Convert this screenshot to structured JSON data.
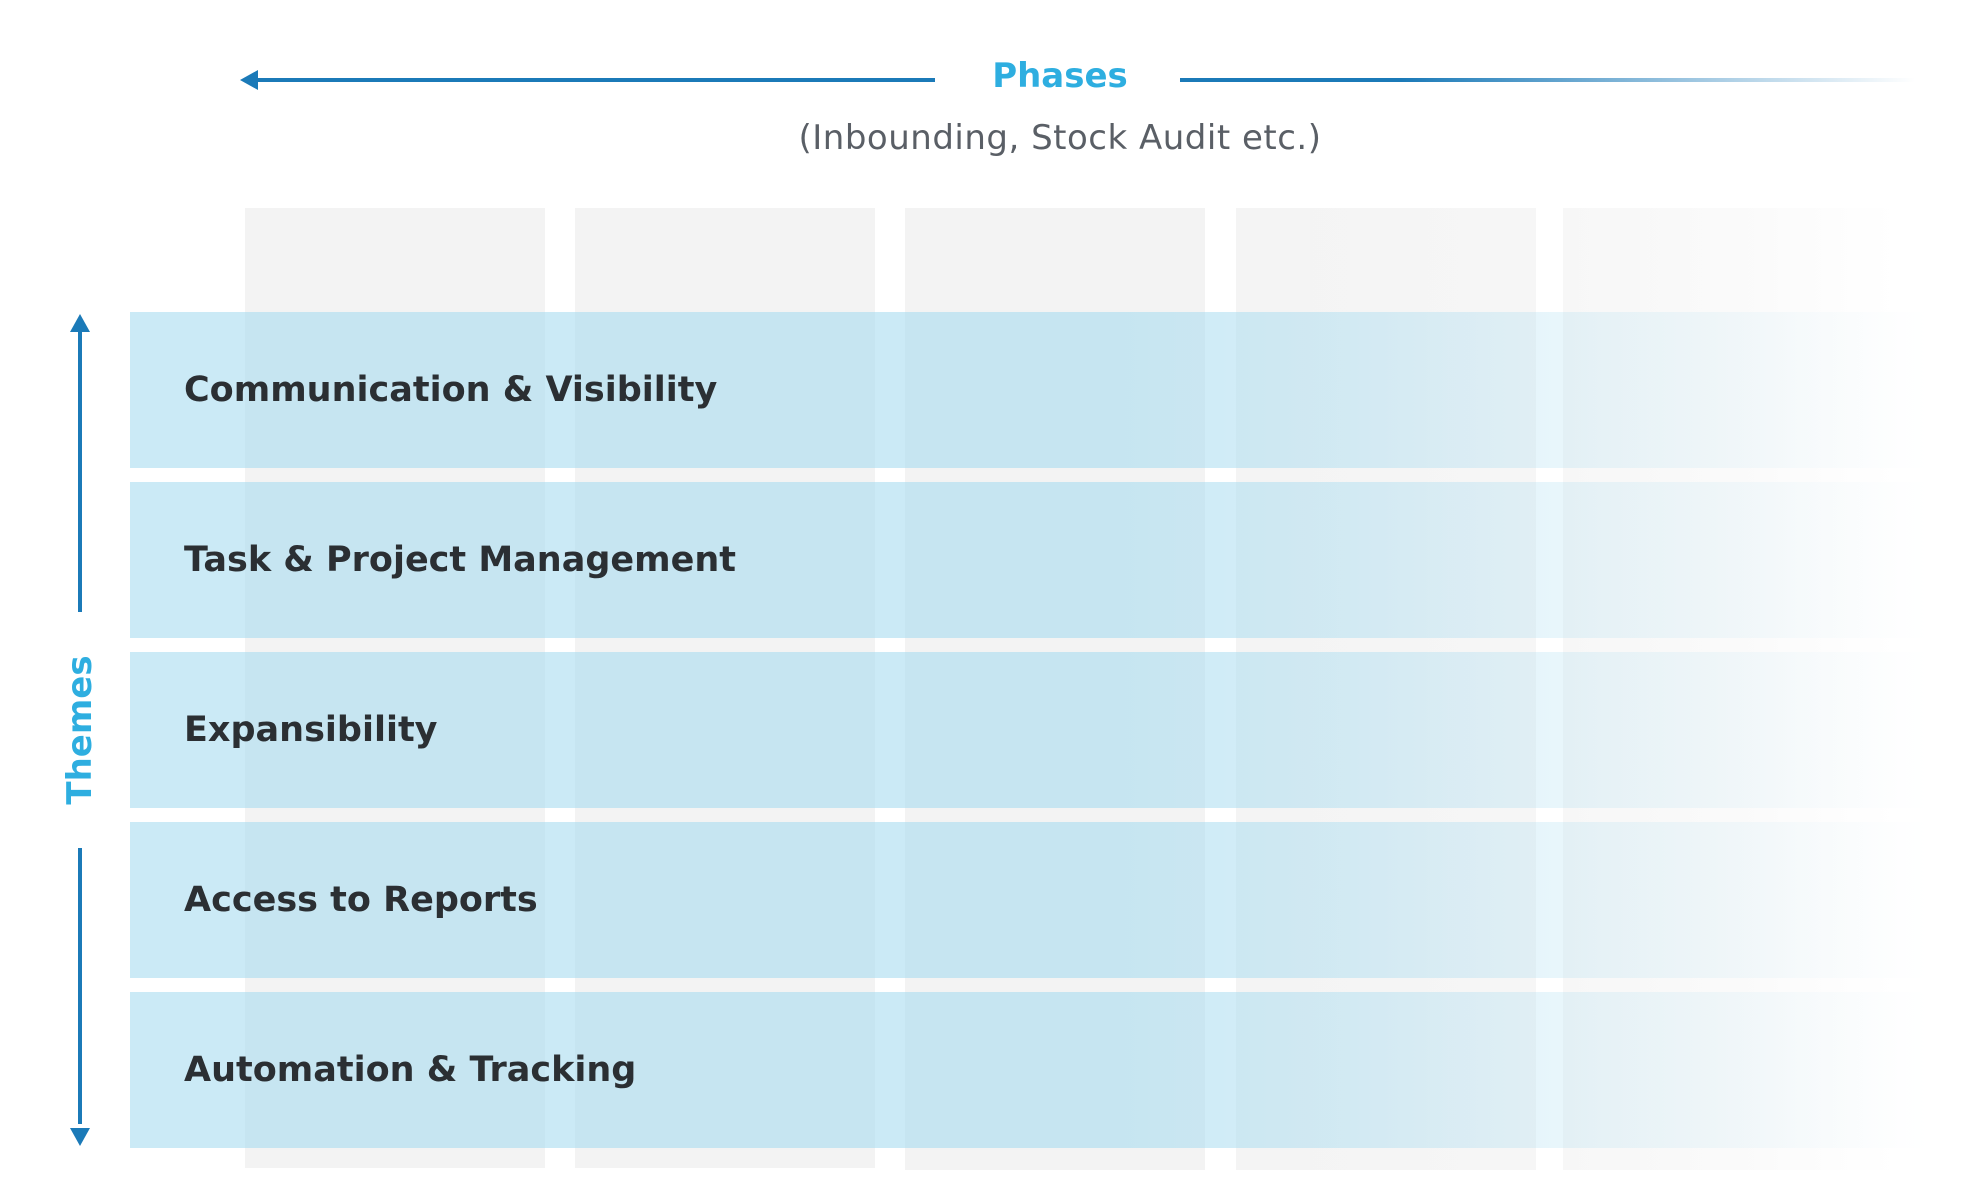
{
  "phases": {
    "title": "Phases",
    "subtitle": "(Inbounding, Stock Audit etc.)"
  },
  "themes": {
    "axis_label": "Themes",
    "rows": [
      {
        "label": "Communication & Visibility"
      },
      {
        "label": "Task & Project Management"
      },
      {
        "label": "Expansibility"
      },
      {
        "label": "Access to Reports"
      },
      {
        "label": "Automation & Tracking"
      }
    ]
  },
  "colors": {
    "accent_light": "#2eaee0",
    "accent_dark": "#1b7ab8",
    "row_fill": "#a8dcf0",
    "column_fill": "#f3f3f3",
    "text_dark": "#2b2f33",
    "text_muted": "#5a5f66"
  }
}
